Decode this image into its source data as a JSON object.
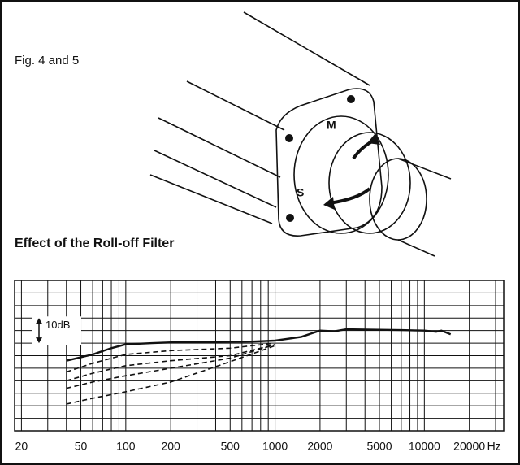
{
  "caption": "Fig. 4 and 5",
  "illustration": {
    "labels": [
      "S",
      "M"
    ]
  },
  "chart_data": {
    "type": "line",
    "title": "Effect of the Roll-off Filter",
    "log_x": true,
    "grid": true,
    "xlim": [
      18,
      34000
    ],
    "xticks": [
      20,
      50,
      100,
      200,
      500,
      1000,
      2000,
      5000,
      10000,
      20000
    ],
    "x_unit": "Hz",
    "xgrid": [
      20,
      30,
      40,
      50,
      60,
      70,
      80,
      90,
      100,
      200,
      300,
      400,
      500,
      600,
      700,
      800,
      900,
      1000,
      2000,
      3000,
      4000,
      5000,
      6000,
      7000,
      8000,
      9000,
      10000,
      20000,
      30000
    ],
    "ylim": [
      0,
      60
    ],
    "ygrid": [
      0,
      5,
      10,
      15,
      20,
      25,
      30,
      35,
      40,
      45,
      50,
      55,
      60
    ],
    "annotation": {
      "label": "10dB",
      "span": [
        35,
        45
      ]
    },
    "series": [
      {
        "color": "#111111",
        "dashed": false,
        "x": [
          40,
          60,
          80,
          100,
          150,
          200,
          300,
          500,
          700,
          1000,
          1500,
          2000,
          2500,
          3000,
          5000,
          7000,
          10000,
          12000,
          13000,
          15000
        ],
        "values": [
          28,
          30.5,
          33,
          34.5,
          35,
          35.3,
          35.3,
          35.5,
          35.6,
          36,
          37.5,
          40,
          39.7,
          40.5,
          40.3,
          40.2,
          40,
          39.5,
          40,
          38.5
        ]
      },
      {
        "color": "#111111",
        "dashed": true,
        "x": [
          40,
          60,
          100,
          200,
          500,
          1000
        ],
        "values": [
          23.5,
          27,
          30.5,
          32,
          33,
          35
        ]
      },
      {
        "color": "#111111",
        "dashed": true,
        "x": [
          40,
          60,
          100,
          200,
          500,
          1000
        ],
        "values": [
          20,
          23,
          26,
          28,
          30,
          34.4
        ]
      },
      {
        "color": "#111111",
        "dashed": true,
        "x": [
          40,
          60,
          100,
          200,
          500,
          1000
        ],
        "values": [
          17,
          19.5,
          22,
          25,
          29,
          34.4
        ]
      },
      {
        "color": "#111111",
        "dashed": true,
        "x": [
          40,
          60,
          100,
          200,
          500,
          1000
        ],
        "values": [
          10.7,
          13,
          15.6,
          19.5,
          27.6,
          34
        ]
      }
    ]
  }
}
